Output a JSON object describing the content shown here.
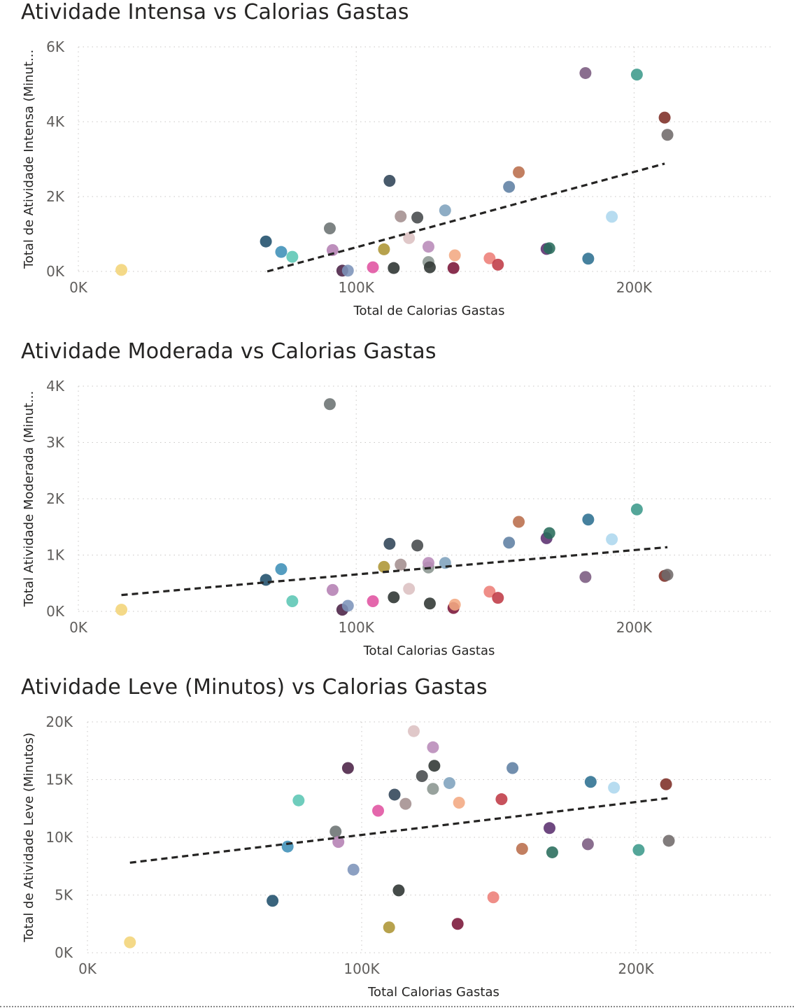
{
  "chart_data": [
    {
      "type": "scatter",
      "title": "Atividade Intensa vs Calorias Gastas",
      "xlabel": "Total de Calorias Gastas",
      "ylabel": "Total de Atividade Intensa (Minut...",
      "xlim": [
        0,
        250000
      ],
      "ylim": [
        0,
        6000
      ],
      "xticks": [
        0,
        100000,
        200000
      ],
      "xtick_labels": [
        "0K",
        "100K",
        "200K"
      ],
      "yticks": [
        0,
        2000,
        4000,
        6000
      ],
      "ytick_labels": [
        "0K",
        "2K",
        "4K",
        "6K"
      ],
      "grid": true,
      "legend": "none",
      "trendline": {
        "x": [
          68000,
          211000
        ],
        "y": [
          0,
          2880
        ]
      },
      "points": [
        {
          "x": 15500,
          "y": 40,
          "color": "#F2D477"
        },
        {
          "x": 67500,
          "y": 800,
          "color": "#1F4E6B"
        },
        {
          "x": 73000,
          "y": 520,
          "color": "#3E90B7"
        },
        {
          "x": 77000,
          "y": 390,
          "color": "#5BC6B4"
        },
        {
          "x": 90500,
          "y": 1150,
          "color": "#6B7272"
        },
        {
          "x": 91500,
          "y": 570,
          "color": "#B47FB3"
        },
        {
          "x": 95000,
          "y": 20,
          "color": "#4A2145"
        },
        {
          "x": 97000,
          "y": 20,
          "color": "#7C93B9"
        },
        {
          "x": 106000,
          "y": 110,
          "color": "#E052A0"
        },
        {
          "x": 110000,
          "y": 590,
          "color": "#AD9534"
        },
        {
          "x": 112000,
          "y": 2420,
          "color": "#2F4356"
        },
        {
          "x": 113500,
          "y": 90,
          "color": "#2B3230"
        },
        {
          "x": 116000,
          "y": 1470,
          "color": "#A38E8E"
        },
        {
          "x": 119000,
          "y": 890,
          "color": "#DCC0C2"
        },
        {
          "x": 122000,
          "y": 1440,
          "color": "#45494B"
        },
        {
          "x": 126000,
          "y": 250,
          "color": "#8A9590"
        },
        {
          "x": 126000,
          "y": 660,
          "color": "#B88AB8"
        },
        {
          "x": 126500,
          "y": 110,
          "color": "#2F3532"
        },
        {
          "x": 132000,
          "y": 1630,
          "color": "#7EA2BD"
        },
        {
          "x": 135000,
          "y": 90,
          "color": "#7A1538"
        },
        {
          "x": 135500,
          "y": 430,
          "color": "#F2A882"
        },
        {
          "x": 148000,
          "y": 350,
          "color": "#ED7E78"
        },
        {
          "x": 151000,
          "y": 180,
          "color": "#BF3A45"
        },
        {
          "x": 155000,
          "y": 2260,
          "color": "#5F80A3"
        },
        {
          "x": 158500,
          "y": 2650,
          "color": "#BA6D4B"
        },
        {
          "x": 168500,
          "y": 600,
          "color": "#5A2F6E"
        },
        {
          "x": 169500,
          "y": 620,
          "color": "#286C5B"
        },
        {
          "x": 182500,
          "y": 5300,
          "color": "#7A5A80"
        },
        {
          "x": 183500,
          "y": 340,
          "color": "#2C6F91"
        },
        {
          "x": 192000,
          "y": 1460,
          "color": "#ADD7EE"
        },
        {
          "x": 201000,
          "y": 5260,
          "color": "#3C9A8B"
        },
        {
          "x": 211000,
          "y": 4110,
          "color": "#7D2E26"
        },
        {
          "x": 212000,
          "y": 3650,
          "color": "#706A6A"
        }
      ]
    },
    {
      "type": "scatter",
      "title": "Atividade Moderada vs Calorias Gastas",
      "xlabel": "Total Calorias Gastas",
      "ylabel": "Total Atividade Moderada (Minut...",
      "xlim": [
        0,
        250000
      ],
      "ylim": [
        0,
        4000
      ],
      "xticks": [
        0,
        100000,
        200000
      ],
      "xtick_labels": [
        "0K",
        "100K",
        "200K"
      ],
      "yticks": [
        0,
        1000,
        2000,
        3000,
        4000
      ],
      "ytick_labels": [
        "0K",
        "1K",
        "2K",
        "3K",
        "4K"
      ],
      "grid": true,
      "legend": "none",
      "trendline": {
        "x": [
          15500,
          212000
        ],
        "y": [
          290,
          1140
        ]
      },
      "points": [
        {
          "x": 15500,
          "y": 30,
          "color": "#F2D477"
        },
        {
          "x": 67500,
          "y": 560,
          "color": "#1F4E6B"
        },
        {
          "x": 73000,
          "y": 750,
          "color": "#3E90B7"
        },
        {
          "x": 77000,
          "y": 180,
          "color": "#5BC6B4"
        },
        {
          "x": 90500,
          "y": 3680,
          "color": "#6B7272"
        },
        {
          "x": 91500,
          "y": 380,
          "color": "#B47FB3"
        },
        {
          "x": 95000,
          "y": 30,
          "color": "#4A2145"
        },
        {
          "x": 97000,
          "y": 100,
          "color": "#7C93B9"
        },
        {
          "x": 106000,
          "y": 180,
          "color": "#E052A0"
        },
        {
          "x": 110000,
          "y": 790,
          "color": "#AD9534"
        },
        {
          "x": 112000,
          "y": 1200,
          "color": "#2F4356"
        },
        {
          "x": 113500,
          "y": 250,
          "color": "#2B3230"
        },
        {
          "x": 116000,
          "y": 830,
          "color": "#A38E8E"
        },
        {
          "x": 119000,
          "y": 400,
          "color": "#DCC0C2"
        },
        {
          "x": 122000,
          "y": 1170,
          "color": "#45494B"
        },
        {
          "x": 126000,
          "y": 780,
          "color": "#8A9590"
        },
        {
          "x": 126000,
          "y": 860,
          "color": "#B88AB8"
        },
        {
          "x": 126500,
          "y": 140,
          "color": "#2F3532"
        },
        {
          "x": 132000,
          "y": 860,
          "color": "#7EA2BD"
        },
        {
          "x": 135000,
          "y": 60,
          "color": "#7A1538"
        },
        {
          "x": 135500,
          "y": 120,
          "color": "#F2A882"
        },
        {
          "x": 148000,
          "y": 350,
          "color": "#ED7E78"
        },
        {
          "x": 151000,
          "y": 240,
          "color": "#BF3A45"
        },
        {
          "x": 155000,
          "y": 1220,
          "color": "#5F80A3"
        },
        {
          "x": 158500,
          "y": 1590,
          "color": "#BA6D4B"
        },
        {
          "x": 168500,
          "y": 1300,
          "color": "#5A2F6E"
        },
        {
          "x": 169500,
          "y": 1390,
          "color": "#286C5B"
        },
        {
          "x": 182500,
          "y": 610,
          "color": "#7A5A80"
        },
        {
          "x": 183500,
          "y": 1630,
          "color": "#2C6F91"
        },
        {
          "x": 192000,
          "y": 1280,
          "color": "#ADD7EE"
        },
        {
          "x": 201000,
          "y": 1810,
          "color": "#3C9A8B"
        },
        {
          "x": 211000,
          "y": 630,
          "color": "#7D2E26"
        },
        {
          "x": 212000,
          "y": 650,
          "color": "#706A6A"
        }
      ]
    },
    {
      "type": "scatter",
      "title": "Atividade Leve (Minutos) vs Calorias Gastas",
      "xlabel": "Total Calorias Gastas",
      "ylabel": "Total de Atividade Leve (Minutos)",
      "xlim": [
        0,
        250000
      ],
      "ylim": [
        0,
        20000
      ],
      "xticks": [
        0,
        100000,
        200000
      ],
      "xtick_labels": [
        "0K",
        "100K",
        "200K"
      ],
      "yticks": [
        0,
        5000,
        10000,
        15000,
        20000
      ],
      "ytick_labels": [
        "0K",
        "5K",
        "10K",
        "15K",
        "20K"
      ],
      "grid": true,
      "legend": "none",
      "trendline": {
        "x": [
          15500,
          212000
        ],
        "y": [
          7800,
          13400
        ]
      },
      "points": [
        {
          "x": 15500,
          "y": 900,
          "color": "#F2D477"
        },
        {
          "x": 67500,
          "y": 4500,
          "color": "#1F4E6B"
        },
        {
          "x": 73000,
          "y": 9200,
          "color": "#3E90B7"
        },
        {
          "x": 77000,
          "y": 13200,
          "color": "#5BC6B4"
        },
        {
          "x": 90500,
          "y": 10500,
          "color": "#6B7272"
        },
        {
          "x": 91500,
          "y": 9600,
          "color": "#B47FB3"
        },
        {
          "x": 95000,
          "y": 16000,
          "color": "#4A2145"
        },
        {
          "x": 97000,
          "y": 7200,
          "color": "#7C93B9"
        },
        {
          "x": 106000,
          "y": 12300,
          "color": "#E052A0"
        },
        {
          "x": 110000,
          "y": 2200,
          "color": "#AD9534"
        },
        {
          "x": 112000,
          "y": 13700,
          "color": "#2F4356"
        },
        {
          "x": 113500,
          "y": 5400,
          "color": "#2B3230"
        },
        {
          "x": 116000,
          "y": 12900,
          "color": "#A38E8E"
        },
        {
          "x": 119000,
          "y": 19200,
          "color": "#DCC0C2"
        },
        {
          "x": 122000,
          "y": 15300,
          "color": "#45494B"
        },
        {
          "x": 126000,
          "y": 14200,
          "color": "#8A9590"
        },
        {
          "x": 126000,
          "y": 17800,
          "color": "#B88AB8"
        },
        {
          "x": 126500,
          "y": 16200,
          "color": "#2F3532"
        },
        {
          "x": 132000,
          "y": 14700,
          "color": "#7EA2BD"
        },
        {
          "x": 135000,
          "y": 2500,
          "color": "#7A1538"
        },
        {
          "x": 135500,
          "y": 13000,
          "color": "#F2A882"
        },
        {
          "x": 148000,
          "y": 4800,
          "color": "#ED7E78"
        },
        {
          "x": 151000,
          "y": 13300,
          "color": "#BF3A45"
        },
        {
          "x": 155000,
          "y": 16000,
          "color": "#5F80A3"
        },
        {
          "x": 158500,
          "y": 9000,
          "color": "#BA6D4B"
        },
        {
          "x": 168500,
          "y": 10800,
          "color": "#5A2F6E"
        },
        {
          "x": 169500,
          "y": 8700,
          "color": "#286C5B"
        },
        {
          "x": 182500,
          "y": 9400,
          "color": "#7A5A80"
        },
        {
          "x": 183500,
          "y": 14800,
          "color": "#2C6F91"
        },
        {
          "x": 192000,
          "y": 14300,
          "color": "#ADD7EE"
        },
        {
          "x": 201000,
          "y": 8900,
          "color": "#3C9A8B"
        },
        {
          "x": 211000,
          "y": 14600,
          "color": "#7D2E26"
        },
        {
          "x": 212000,
          "y": 9700,
          "color": "#706A6A"
        }
      ]
    }
  ]
}
